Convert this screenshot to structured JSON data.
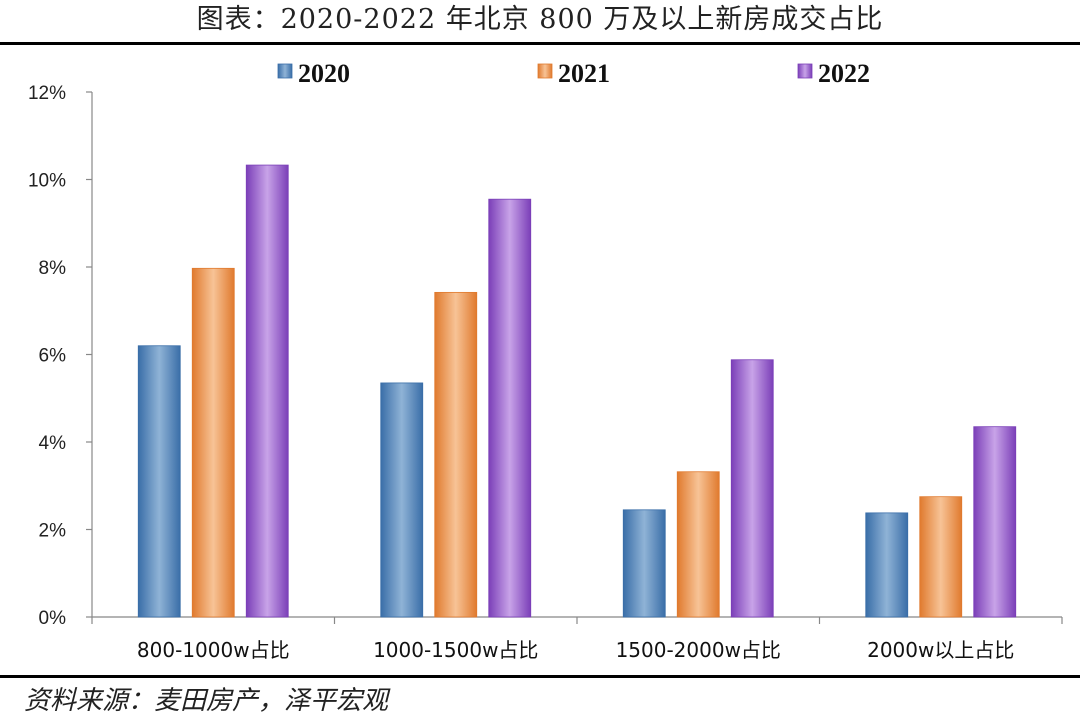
{
  "title": "图表：2020-2022 年北京 800 万及以上新房成交占比",
  "source": "资料来源：麦田房产，泽平宏观",
  "colors": {
    "2020": [
      "#3a6ea8",
      "#8fb3d6"
    ],
    "2021": [
      "#e07a2e",
      "#f7c396"
    ],
    "2022": [
      "#7b3fb8",
      "#c8a3e8"
    ]
  },
  "chart_data": {
    "type": "bar",
    "title": "图表：2020-2022 年北京 800 万及以上新房成交占比",
    "categories": [
      "800-1000w占比",
      "1000-1500w占比",
      "1500-2000w占比",
      "2000w以上占比"
    ],
    "series": [
      {
        "name": "2020",
        "values": [
          6.2,
          5.35,
          2.45,
          2.38
        ]
      },
      {
        "name": "2021",
        "values": [
          7.97,
          7.42,
          3.32,
          2.75
        ]
      },
      {
        "name": "2022",
        "values": [
          10.33,
          9.55,
          5.88,
          4.35
        ]
      }
    ],
    "ylim": [
      0,
      12
    ],
    "yticks": [
      0,
      2,
      4,
      6,
      8,
      10,
      12
    ],
    "ytick_labels": [
      "0%",
      "2%",
      "4%",
      "6%",
      "8%",
      "10%",
      "12%"
    ],
    "xlabel": "",
    "ylabel": "",
    "legend": "top-center",
    "grid": false
  }
}
